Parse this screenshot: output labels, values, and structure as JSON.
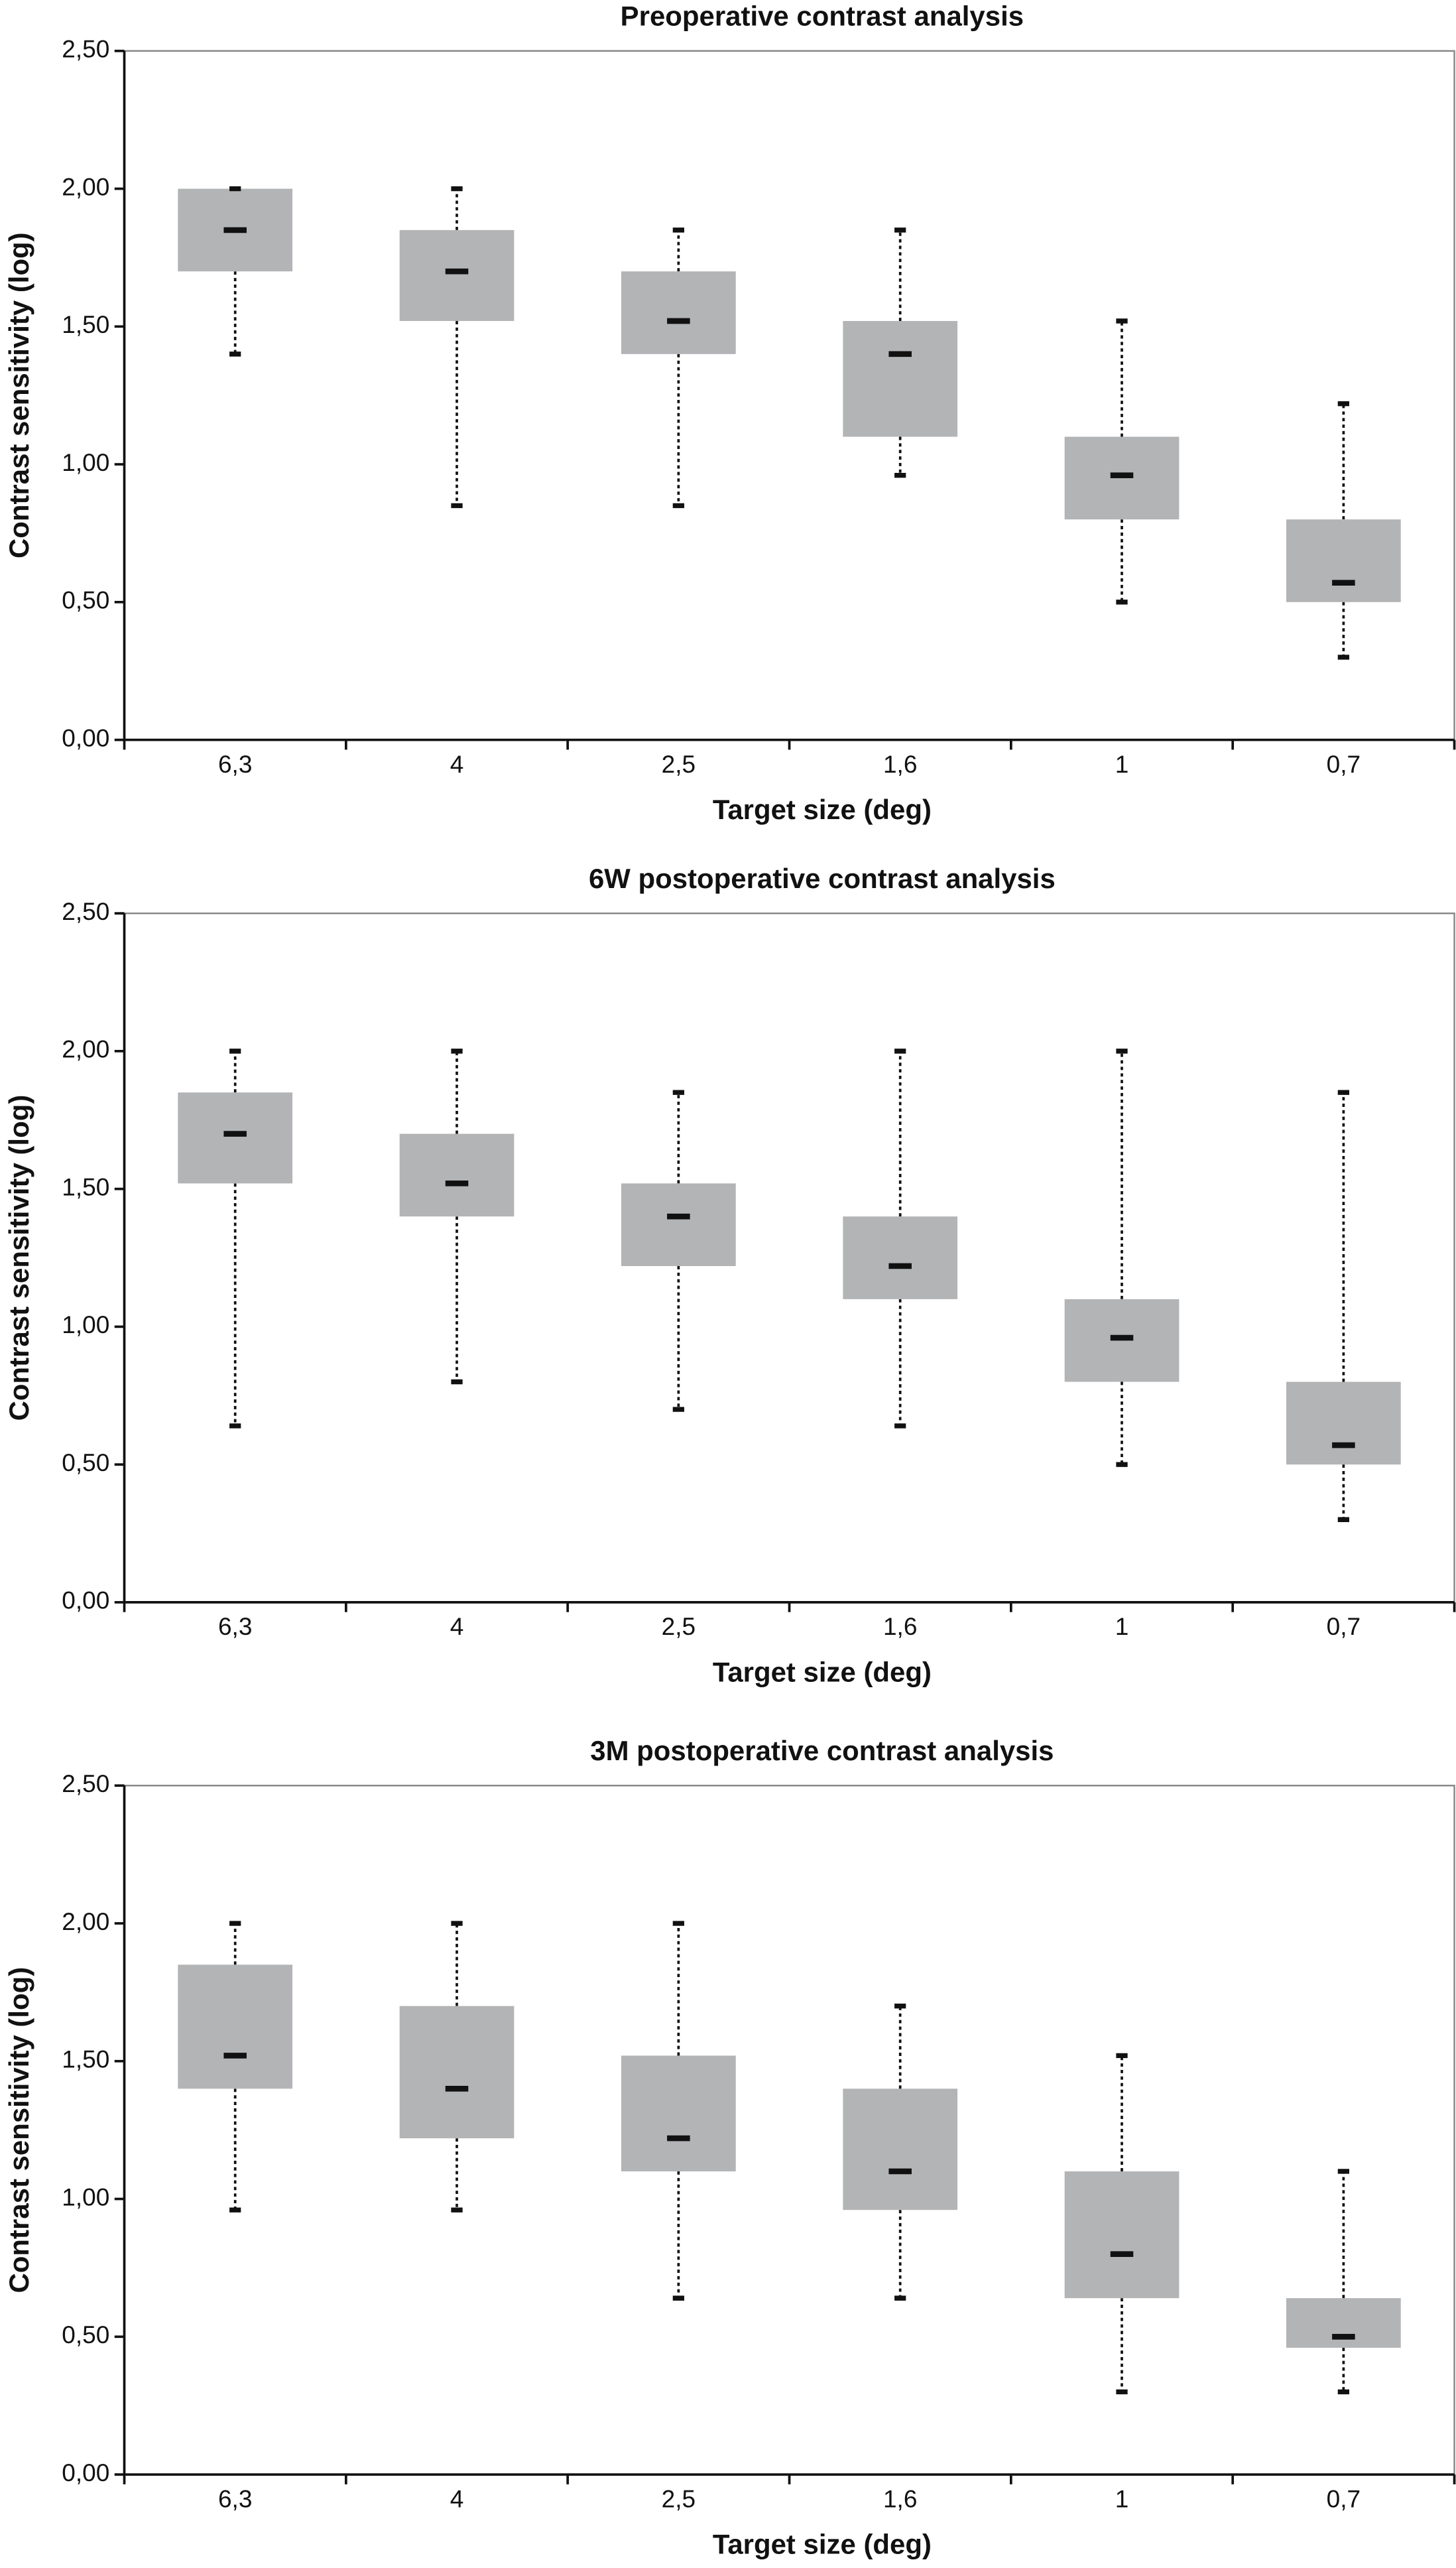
{
  "chart_data": [
    {
      "type": "box",
      "title": "Preoperative contrast analysis",
      "x_label": "Target size (deg)",
      "y_label": "Contrast sensitivity (log)",
      "categories": [
        "6,3",
        "4",
        "2,5",
        "1,6",
        "1",
        "0,7"
      ],
      "min": [
        1.4,
        0.85,
        0.85,
        0.96,
        0.5,
        0.3
      ],
      "q1": [
        1.7,
        1.52,
        1.4,
        1.1,
        0.8,
        0.5
      ],
      "median": [
        1.85,
        1.7,
        1.52,
        1.4,
        0.96,
        0.57
      ],
      "q3": [
        2.0,
        1.85,
        1.7,
        1.52,
        1.1,
        0.8
      ],
      "max": [
        2.0,
        2.0,
        1.85,
        1.85,
        1.52,
        1.22
      ],
      "color": "#b3b4b6",
      "ylim": [
        0,
        2.5
      ],
      "yticks": [
        {
          "value": 0,
          "label": "0,00"
        },
        {
          "value": 0.5,
          "label": "0,50"
        },
        {
          "value": 1,
          "label": "1,00"
        },
        {
          "value": 1.5,
          "label": "1,50"
        },
        {
          "value": 2,
          "label": "2,00"
        },
        {
          "value": 2.5,
          "label": "2,50"
        }
      ]
    },
    {
      "type": "box",
      "title": "6W postoperative contrast analysis",
      "x_label": "Target size (deg)",
      "y_label": "Contrast sensitivity (log)",
      "categories": [
        "6,3",
        "4",
        "2,5",
        "1,6",
        "1",
        "0,7"
      ],
      "min": [
        0.64,
        0.8,
        0.7,
        0.64,
        0.5,
        0.3
      ],
      "q1": [
        1.52,
        1.4,
        1.22,
        1.1,
        0.8,
        0.5
      ],
      "median": [
        1.7,
        1.52,
        1.4,
        1.22,
        0.96,
        0.57
      ],
      "q3": [
        1.85,
        1.7,
        1.52,
        1.4,
        1.1,
        0.8
      ],
      "max": [
        2.0,
        2.0,
        1.85,
        2.0,
        2.0,
        1.85
      ],
      "color": "#b3b4b6",
      "ylim": [
        0,
        2.5
      ],
      "yticks": [
        {
          "value": 0,
          "label": "0,00"
        },
        {
          "value": 0.5,
          "label": "0,50"
        },
        {
          "value": 1,
          "label": "1,00"
        },
        {
          "value": 1.5,
          "label": "1,50"
        },
        {
          "value": 2,
          "label": "2,00"
        },
        {
          "value": 2.5,
          "label": "2,50"
        }
      ]
    },
    {
      "type": "box",
      "title": "3M postoperative contrast analysis",
      "x_label": "Target size (deg)",
      "y_label": "Contrast sensitivity (log)",
      "categories": [
        "6,3",
        "4",
        "2,5",
        "1,6",
        "1",
        "0,7"
      ],
      "min": [
        0.96,
        0.96,
        0.64,
        0.64,
        0.3,
        0.3
      ],
      "q1": [
        1.4,
        1.22,
        1.1,
        0.96,
        0.64,
        0.46
      ],
      "median": [
        1.52,
        1.4,
        1.22,
        1.1,
        0.8,
        0.5
      ],
      "q3": [
        1.85,
        1.7,
        1.52,
        1.4,
        1.1,
        0.64
      ],
      "max": [
        2.0,
        2.0,
        2.0,
        1.7,
        1.52,
        1.1
      ],
      "color": "#b3b4b6",
      "ylim": [
        0,
        2.5
      ],
      "yticks": [
        {
          "value": 0,
          "label": "0,00"
        },
        {
          "value": 0.5,
          "label": "0,50"
        },
        {
          "value": 1,
          "label": "1,00"
        },
        {
          "value": 1.5,
          "label": "1,50"
        },
        {
          "value": 2,
          "label": "2,00"
        },
        {
          "value": 2.5,
          "label": "2,50"
        }
      ]
    }
  ]
}
